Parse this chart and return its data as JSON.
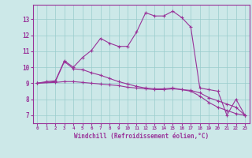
{
  "xlabel": "Windchill (Refroidissement éolien,°C)",
  "bg_color": "#cce8e8",
  "grid_color": "#99cccc",
  "line_color": "#993399",
  "xlim": [
    -0.5,
    23.5
  ],
  "ylim": [
    6.5,
    13.9
  ],
  "xticks": [
    0,
    1,
    2,
    3,
    4,
    5,
    6,
    7,
    8,
    9,
    10,
    11,
    12,
    13,
    14,
    15,
    16,
    17,
    18,
    19,
    20,
    21,
    22,
    23
  ],
  "yticks": [
    7,
    8,
    9,
    10,
    11,
    12,
    13
  ],
  "line1_x": [
    0,
    1,
    2,
    3,
    4,
    5,
    6,
    7,
    8,
    9,
    10,
    11,
    12,
    13,
    14,
    15,
    16,
    17,
    18,
    19,
    20,
    21,
    22,
    23
  ],
  "line1_y": [
    9.0,
    9.1,
    9.15,
    10.4,
    10.0,
    10.6,
    11.05,
    11.8,
    11.5,
    11.3,
    11.3,
    12.2,
    13.4,
    13.2,
    13.2,
    13.5,
    13.1,
    12.5,
    8.7,
    8.6,
    8.5,
    7.0,
    8.0,
    7.0
  ],
  "line2_x": [
    0,
    2,
    3,
    4,
    5,
    6,
    7,
    8,
    9,
    10,
    11,
    12,
    13,
    14,
    15,
    16,
    17,
    18,
    19,
    20,
    21,
    22,
    23
  ],
  "line2_y": [
    9.0,
    9.1,
    10.35,
    9.9,
    9.85,
    9.65,
    9.5,
    9.3,
    9.1,
    8.95,
    8.8,
    8.7,
    8.65,
    8.65,
    8.7,
    8.6,
    8.5,
    8.2,
    7.8,
    7.5,
    7.3,
    7.1,
    7.0
  ],
  "line3_x": [
    0,
    2,
    3,
    4,
    5,
    6,
    7,
    8,
    9,
    10,
    11,
    12,
    13,
    14,
    15,
    16,
    17,
    18,
    19,
    20,
    21,
    22,
    23
  ],
  "line3_y": [
    9.0,
    9.05,
    9.1,
    9.1,
    9.05,
    9.0,
    8.95,
    8.9,
    8.85,
    8.75,
    8.7,
    8.65,
    8.6,
    8.6,
    8.65,
    8.6,
    8.55,
    8.4,
    8.1,
    7.9,
    7.7,
    7.5,
    7.0
  ]
}
